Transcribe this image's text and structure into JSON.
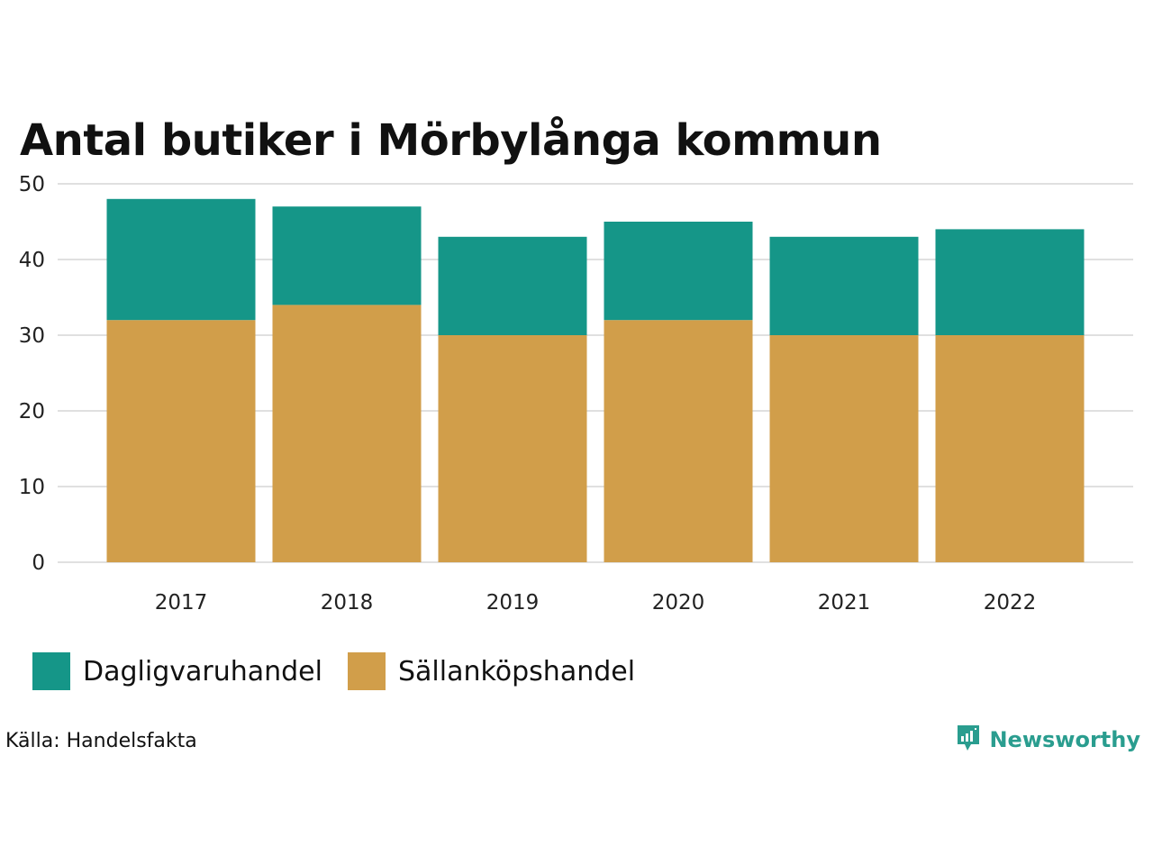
{
  "colors": {
    "dagligvaruhandel": "#159688",
    "sallankopshandel": "#d19e4a",
    "grid": "#e0e0e0",
    "brand": "#2a9d8f"
  },
  "chart_data": {
    "type": "bar",
    "stacked": true,
    "title": "Antal butiker i Mörbylånga kommun",
    "categories": [
      "2017",
      "2018",
      "2019",
      "2020",
      "2021",
      "2022"
    ],
    "series": [
      {
        "name": "Sällanköpshandel",
        "values": [
          32,
          34,
          30,
          32,
          30,
          30
        ]
      },
      {
        "name": "Dagligvaruhandel",
        "values": [
          16,
          13,
          13,
          13,
          13,
          14
        ]
      }
    ],
    "ylim": [
      0,
      50
    ],
    "yticks": [
      "0",
      "10",
      "20",
      "30",
      "40",
      "50"
    ],
    "xlabel": "",
    "ylabel": "",
    "grid": true,
    "legend": "bottom-left"
  },
  "legend": {
    "items": [
      {
        "label": "Dagligvaruhandel"
      },
      {
        "label": "Sällanköpshandel"
      }
    ]
  },
  "source": "Källa: Handelsfakta",
  "brand": {
    "name": "Newsworthy",
    "icon": "newsworthy-logo-icon"
  }
}
